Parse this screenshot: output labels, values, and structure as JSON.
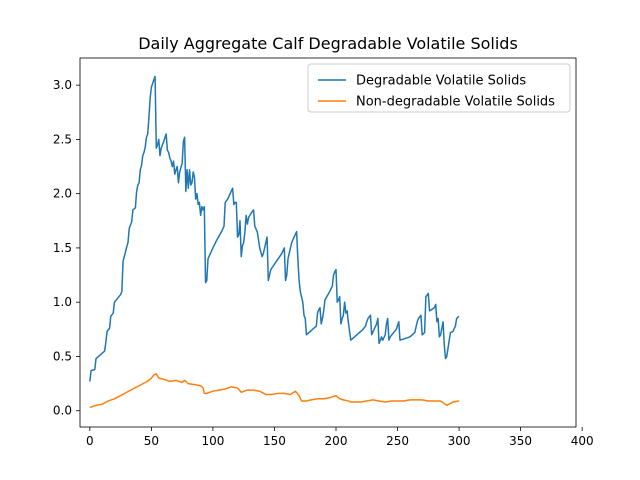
{
  "chart_data": {
    "type": "line",
    "title": "Daily Aggregate Calf Degradable Volatile Solids",
    "xlabel": "",
    "ylabel": "",
    "xlim": [
      -8,
      395
    ],
    "ylim": [
      -0.15,
      3.25
    ],
    "x_ticks": [
      0,
      50,
      100,
      150,
      200,
      250,
      300,
      350,
      400
    ],
    "y_ticks": [
      0.0,
      0.5,
      1.0,
      1.5,
      2.0,
      2.5,
      3.0
    ],
    "legend_position": "top-right",
    "grid": false,
    "series": [
      {
        "name": "Degradable Volatile Solids",
        "color": "#1f77b4",
        "points": [
          [
            0,
            0.27
          ],
          [
            1,
            0.37
          ],
          [
            4,
            0.38
          ],
          [
            5,
            0.48
          ],
          [
            9,
            0.52
          ],
          [
            12,
            0.55
          ],
          [
            13,
            0.63
          ],
          [
            14,
            0.73
          ],
          [
            16,
            0.76
          ],
          [
            17,
            0.87
          ],
          [
            19,
            0.9
          ],
          [
            20,
            1.0
          ],
          [
            25,
            1.07
          ],
          [
            26,
            1.1
          ],
          [
            27,
            1.38
          ],
          [
            28,
            1.42
          ],
          [
            30,
            1.51
          ],
          [
            31,
            1.55
          ],
          [
            32,
            1.68
          ],
          [
            34,
            1.74
          ],
          [
            35,
            1.85
          ],
          [
            37,
            1.87
          ],
          [
            38,
            2.02
          ],
          [
            39,
            2.08
          ],
          [
            40,
            2.1
          ],
          [
            41,
            2.22
          ],
          [
            42,
            2.26
          ],
          [
            43,
            2.35
          ],
          [
            44,
            2.38
          ],
          [
            45,
            2.43
          ],
          [
            46,
            2.52
          ],
          [
            47,
            2.55
          ],
          [
            48,
            2.7
          ],
          [
            49,
            2.88
          ],
          [
            50,
            2.98
          ],
          [
            52,
            3.05
          ],
          [
            53,
            3.08
          ],
          [
            54,
            2.42
          ],
          [
            55,
            2.45
          ],
          [
            56,
            2.5
          ],
          [
            57,
            2.35
          ],
          [
            58,
            2.42
          ],
          [
            60,
            2.48
          ],
          [
            62,
            2.55
          ],
          [
            63,
            2.4
          ],
          [
            64,
            2.38
          ],
          [
            65,
            2.33
          ],
          [
            66,
            2.3
          ],
          [
            67,
            2.25
          ],
          [
            68,
            2.3
          ],
          [
            69,
            2.18
          ],
          [
            70,
            2.22
          ],
          [
            71,
            2.25
          ],
          [
            72,
            2.1
          ],
          [
            73,
            2.2
          ],
          [
            75,
            2.28
          ],
          [
            76,
            2.48
          ],
          [
            77,
            2.52
          ],
          [
            78,
            2.02
          ],
          [
            79,
            2.22
          ],
          [
            80,
            2.05
          ],
          [
            81,
            2.22
          ],
          [
            82,
            2.08
          ],
          [
            83,
            2.1
          ],
          [
            84,
            2.2
          ],
          [
            85,
            2.15
          ],
          [
            86,
            1.95
          ],
          [
            87,
            2.0
          ],
          [
            88,
            1.9
          ],
          [
            89,
            1.92
          ],
          [
            90,
            1.8
          ],
          [
            91,
            1.88
          ],
          [
            92,
            1.85
          ],
          [
            93,
            1.88
          ],
          [
            94,
            1.18
          ],
          [
            95,
            1.2
          ],
          [
            96,
            1.4
          ],
          [
            98,
            1.45
          ],
          [
            100,
            1.5
          ],
          [
            103,
            1.57
          ],
          [
            107,
            1.65
          ],
          [
            109,
            1.7
          ],
          [
            110,
            1.92
          ],
          [
            112,
            1.95
          ],
          [
            114,
            2.0
          ],
          [
            116,
            2.05
          ],
          [
            117,
            1.9
          ],
          [
            118,
            1.92
          ],
          [
            119,
            1.92
          ],
          [
            120,
            1.6
          ],
          [
            121,
            1.62
          ],
          [
            122,
            1.75
          ],
          [
            123,
            1.42
          ],
          [
            124,
            1.52
          ],
          [
            125,
            1.55
          ],
          [
            126,
            1.65
          ],
          [
            127,
            1.8
          ],
          [
            128,
            1.72
          ],
          [
            129,
            1.78
          ],
          [
            131,
            1.82
          ],
          [
            133,
            1.85
          ],
          [
            134,
            1.7
          ],
          [
            136,
            1.65
          ],
          [
            137,
            1.58
          ],
          [
            138,
            1.5
          ],
          [
            140,
            1.42
          ],
          [
            141,
            1.45
          ],
          [
            143,
            1.55
          ],
          [
            144,
            1.6
          ],
          [
            145,
            1.2
          ],
          [
            147,
            1.3
          ],
          [
            150,
            1.35
          ],
          [
            153,
            1.4
          ],
          [
            156,
            1.45
          ],
          [
            158,
            1.5
          ],
          [
            159,
            1.2
          ],
          [
            160,
            1.25
          ],
          [
            161,
            1.4
          ],
          [
            162,
            1.45
          ],
          [
            164,
            1.55
          ],
          [
            166,
            1.6
          ],
          [
            168,
            1.65
          ],
          [
            169,
            1.4
          ],
          [
            170,
            1.2
          ],
          [
            171,
            1.1
          ],
          [
            172,
            1.05
          ],
          [
            173,
            1.0
          ],
          [
            174,
            0.88
          ],
          [
            175,
            0.85
          ],
          [
            176,
            0.7
          ],
          [
            184,
            0.78
          ],
          [
            185,
            0.9
          ],
          [
            186,
            0.93
          ],
          [
            187,
            0.95
          ],
          [
            188,
            0.8
          ],
          [
            189,
            0.85
          ],
          [
            190,
            0.92
          ],
          [
            191,
            1.02
          ],
          [
            195,
            1.1
          ],
          [
            197,
            1.15
          ],
          [
            198,
            1.25
          ],
          [
            199,
            1.28
          ],
          [
            200,
            1.3
          ],
          [
            201,
            1.0
          ],
          [
            202,
            1.02
          ],
          [
            203,
            1.05
          ],
          [
            204,
            0.8
          ],
          [
            205,
            0.85
          ],
          [
            206,
            0.88
          ],
          [
            207,
            1.0
          ],
          [
            208,
            0.9
          ],
          [
            209,
            0.92
          ],
          [
            210,
            0.82
          ],
          [
            212,
            0.65
          ],
          [
            222,
            0.75
          ],
          [
            224,
            0.78
          ],
          [
            225,
            0.82
          ],
          [
            226,
            0.85
          ],
          [
            228,
            0.88
          ],
          [
            229,
            0.7
          ],
          [
            231,
            0.75
          ],
          [
            233,
            0.8
          ],
          [
            234,
            0.85
          ],
          [
            235,
            0.62
          ],
          [
            236,
            0.65
          ],
          [
            237,
            0.68
          ],
          [
            238,
            0.65
          ],
          [
            240,
            0.7
          ],
          [
            241,
            0.8
          ],
          [
            242,
            0.85
          ],
          [
            243,
            0.65
          ],
          [
            244,
            0.68
          ],
          [
            249,
            0.75
          ],
          [
            251,
            0.82
          ],
          [
            252,
            0.65
          ],
          [
            260,
            0.68
          ],
          [
            264,
            0.72
          ],
          [
            266,
            0.82
          ],
          [
            267,
            0.85
          ],
          [
            269,
            0.88
          ],
          [
            270,
            0.7
          ],
          [
            272,
            0.72
          ],
          [
            273,
            1.05
          ],
          [
            275,
            1.08
          ],
          [
            276,
            0.92
          ],
          [
            280,
            0.95
          ],
          [
            281,
            0.98
          ],
          [
            282,
            0.82
          ],
          [
            283,
            0.85
          ],
          [
            284,
            0.68
          ],
          [
            285,
            0.7
          ],
          [
            287,
            0.82
          ],
          [
            288,
            0.6
          ],
          [
            289,
            0.48
          ],
          [
            290,
            0.5
          ],
          [
            292,
            0.65
          ],
          [
            293,
            0.72
          ],
          [
            295,
            0.73
          ],
          [
            297,
            0.78
          ],
          [
            298,
            0.85
          ],
          [
            300,
            0.87
          ]
        ]
      },
      {
        "name": "Non-degradable Volatile Solids",
        "color": "#ff7f0e",
        "points": [
          [
            0,
            0.03
          ],
          [
            5,
            0.05
          ],
          [
            10,
            0.06
          ],
          [
            15,
            0.09
          ],
          [
            20,
            0.11
          ],
          [
            25,
            0.14
          ],
          [
            30,
            0.17
          ],
          [
            35,
            0.2
          ],
          [
            40,
            0.23
          ],
          [
            45,
            0.26
          ],
          [
            48,
            0.28
          ],
          [
            50,
            0.3
          ],
          [
            52,
            0.33
          ],
          [
            54,
            0.34
          ],
          [
            56,
            0.3
          ],
          [
            60,
            0.29
          ],
          [
            65,
            0.27
          ],
          [
            70,
            0.28
          ],
          [
            75,
            0.26
          ],
          [
            77,
            0.28
          ],
          [
            80,
            0.25
          ],
          [
            85,
            0.24
          ],
          [
            90,
            0.23
          ],
          [
            92,
            0.21
          ],
          [
            93,
            0.16
          ],
          [
            95,
            0.16
          ],
          [
            100,
            0.18
          ],
          [
            105,
            0.19
          ],
          [
            110,
            0.2
          ],
          [
            115,
            0.22
          ],
          [
            120,
            0.21
          ],
          [
            123,
            0.17
          ],
          [
            128,
            0.19
          ],
          [
            133,
            0.19
          ],
          [
            138,
            0.18
          ],
          [
            143,
            0.15
          ],
          [
            148,
            0.15
          ],
          [
            153,
            0.16
          ],
          [
            158,
            0.16
          ],
          [
            163,
            0.15
          ],
          [
            167,
            0.18
          ],
          [
            170,
            0.14
          ],
          [
            172,
            0.09
          ],
          [
            176,
            0.09
          ],
          [
            180,
            0.1
          ],
          [
            185,
            0.11
          ],
          [
            190,
            0.11
          ],
          [
            195,
            0.12
          ],
          [
            200,
            0.14
          ],
          [
            203,
            0.11
          ],
          [
            206,
            0.1
          ],
          [
            210,
            0.09
          ],
          [
            212,
            0.08
          ],
          [
            220,
            0.08
          ],
          [
            225,
            0.09
          ],
          [
            230,
            0.1
          ],
          [
            235,
            0.09
          ],
          [
            240,
            0.08
          ],
          [
            245,
            0.09
          ],
          [
            250,
            0.09
          ],
          [
            255,
            0.09
          ],
          [
            260,
            0.1
          ],
          [
            265,
            0.1
          ],
          [
            270,
            0.1
          ],
          [
            275,
            0.09
          ],
          [
            280,
            0.09
          ],
          [
            285,
            0.09
          ],
          [
            290,
            0.05
          ],
          [
            295,
            0.08
          ],
          [
            300,
            0.09
          ]
        ]
      }
    ]
  }
}
